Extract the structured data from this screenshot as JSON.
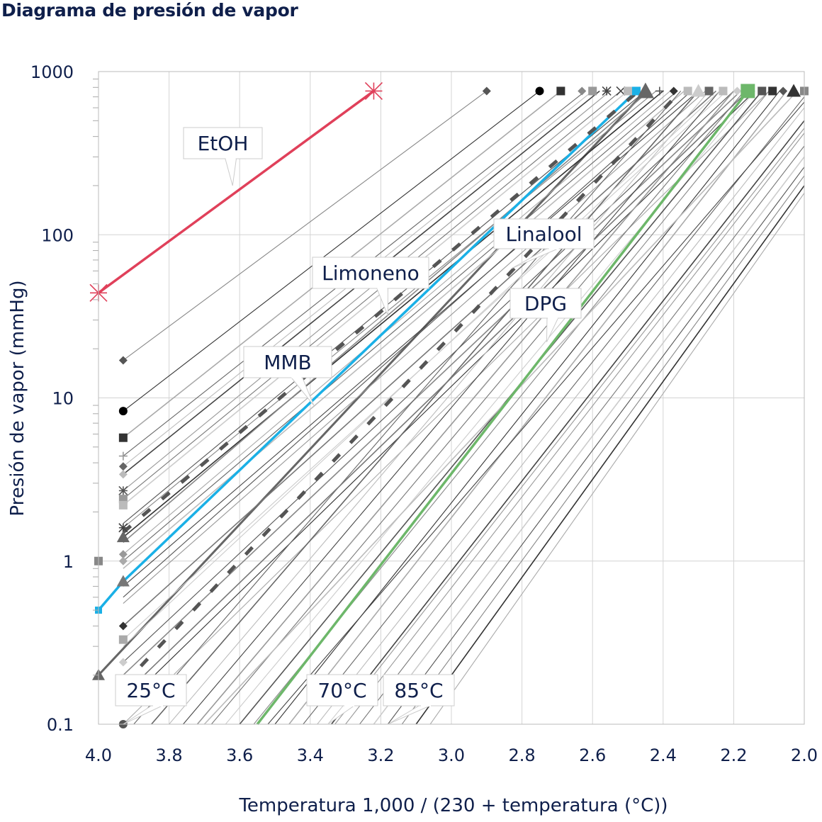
{
  "title": "Diagrama de presión de vapor",
  "chart_data": {
    "type": "line",
    "title": "Diagrama de presión de vapor",
    "xlabel": "Temperatura 1,000 / (230 + temperatura (°C))",
    "ylabel": "Presión de vapor (mmHg)",
    "xlim": [
      4.0,
      2.0
    ],
    "x_reversed": true,
    "ylim": [
      0.1,
      1000
    ],
    "y_scale": "log",
    "grid": true,
    "x_ticks": [
      "4.0",
      "3.8",
      "3.6",
      "3.4",
      "3.2",
      "3.0",
      "2.8",
      "2.6",
      "2.4",
      "2.2",
      "2.0"
    ],
    "y_ticks": [
      "0.1",
      "1",
      "10",
      "100",
      "1000"
    ],
    "highlighted_series": [
      {
        "name": "EtOH",
        "color": "#e0405a",
        "points": [
          [
            4.0,
            44
          ],
          [
            3.22,
            760
          ]
        ],
        "marker": "asterisk"
      },
      {
        "name": "MMB",
        "color": "#1ab0e6",
        "points": [
          [
            4.0,
            0.5
          ],
          [
            3.93,
            0.75
          ],
          [
            2.476,
            760
          ]
        ],
        "marker": "square"
      },
      {
        "name": "Limoneno",
        "color": "#555555",
        "dashed": true,
        "points": [
          [
            3.93,
            1.5
          ],
          [
            2.47,
            760
          ]
        ]
      },
      {
        "name": "Linalool",
        "color": "#555555",
        "dashed": true,
        "points": [
          [
            3.88,
            0.227
          ],
          [
            2.35,
            760
          ]
        ]
      },
      {
        "name": "DPG",
        "color": "#6db76a",
        "points": [
          [
            3.55,
            0.1
          ],
          [
            2.16,
            760
          ]
        ],
        "marker": "square"
      }
    ],
    "other_series": [
      [
        [
          4.0,
          0.2
        ],
        [
          2.45,
          760
        ]
      ],
      [
        [
          3.93,
          17
        ],
        [
          2.9,
          760
        ]
      ],
      [
        [
          3.93,
          8.3
        ],
        [
          2.75,
          760
        ]
      ],
      [
        [
          3.93,
          5.7
        ],
        [
          2.69,
          760
        ]
      ],
      [
        [
          3.93,
          4.4
        ],
        [
          2.62,
          760
        ]
      ],
      [
        [
          3.93,
          3.8
        ],
        [
          2.6,
          760
        ]
      ],
      [
        [
          3.93,
          3.4
        ],
        [
          2.58,
          760
        ]
      ],
      [
        [
          3.93,
          2.7
        ],
        [
          2.55,
          760
        ]
      ],
      [
        [
          3.93,
          2.4
        ],
        [
          2.52,
          760
        ]
      ],
      [
        [
          3.93,
          2.2
        ],
        [
          2.5,
          760
        ]
      ],
      [
        [
          3.93,
          1.7
        ],
        [
          2.45,
          760
        ]
      ],
      [
        [
          3.93,
          1.6
        ],
        [
          2.42,
          760
        ]
      ],
      [
        [
          3.93,
          1.4
        ],
        [
          2.4,
          760
        ]
      ],
      [
        [
          3.93,
          1.1
        ],
        [
          2.38,
          760
        ]
      ],
      [
        [
          3.93,
          1.0
        ],
        [
          2.36,
          760
        ]
      ],
      [
        [
          3.93,
          0.9
        ],
        [
          2.34,
          760
        ]
      ],
      [
        [
          3.93,
          0.7
        ],
        [
          2.3,
          760
        ]
      ],
      [
        [
          3.93,
          0.55
        ],
        [
          2.28,
          760
        ]
      ],
      [
        [
          3.93,
          0.4
        ],
        [
          2.25,
          760
        ]
      ],
      [
        [
          3.93,
          0.33
        ],
        [
          2.22,
          760
        ]
      ],
      [
        [
          3.93,
          0.24
        ],
        [
          2.2,
          760
        ]
      ],
      [
        [
          3.93,
          0.2
        ],
        [
          2.18,
          760
        ]
      ],
      [
        [
          3.93,
          0.13
        ],
        [
          2.14,
          760
        ]
      ],
      [
        [
          3.93,
          0.1
        ],
        [
          2.1,
          760
        ]
      ],
      [
        [
          3.85,
          0.1
        ],
        [
          2.3,
          760
        ]
      ],
      [
        [
          3.8,
          0.1
        ],
        [
          2.27,
          760
        ]
      ],
      [
        [
          3.76,
          0.1
        ],
        [
          2.24,
          760
        ]
      ],
      [
        [
          3.72,
          0.1
        ],
        [
          2.2,
          760
        ]
      ],
      [
        [
          3.68,
          0.1
        ],
        [
          2.17,
          760
        ]
      ],
      [
        [
          3.64,
          0.1
        ],
        [
          2.14,
          760
        ]
      ],
      [
        [
          3.6,
          0.1
        ],
        [
          2.12,
          760
        ]
      ],
      [
        [
          3.56,
          0.1
        ],
        [
          2.1,
          760
        ]
      ],
      [
        [
          3.5,
          0.1
        ],
        [
          2.07,
          760
        ]
      ],
      [
        [
          3.46,
          0.1
        ],
        [
          2.05,
          760
        ]
      ],
      [
        [
          3.42,
          0.1
        ],
        [
          2.0,
          700
        ]
      ],
      [
        [
          3.38,
          0.1
        ],
        [
          2.0,
          600
        ]
      ],
      [
        [
          3.34,
          0.1
        ],
        [
          2.0,
          500
        ]
      ],
      [
        [
          3.3,
          0.1
        ],
        [
          2.0,
          420
        ]
      ],
      [
        [
          3.26,
          0.1
        ],
        [
          2.0,
          350
        ]
      ],
      [
        [
          3.22,
          0.1
        ],
        [
          2.0,
          300
        ]
      ],
      [
        [
          3.18,
          0.1
        ],
        [
          2.0,
          260
        ]
      ],
      [
        [
          3.14,
          0.1
        ],
        [
          2.0,
          230
        ]
      ],
      [
        [
          3.1,
          0.1
        ],
        [
          2.0,
          200
        ]
      ],
      [
        [
          3.06,
          0.1
        ],
        [
          2.0,
          180
        ]
      ],
      [
        [
          3.9,
          0.1
        ],
        [
          2.35,
          760
        ]
      ],
      [
        [
          3.7,
          0.1
        ],
        [
          2.02,
          760
        ]
      ],
      [
        [
          3.52,
          0.1
        ],
        [
          2.0,
          650
        ]
      ],
      [
        [
          3.33,
          0.1
        ],
        [
          2.0,
          450
        ]
      ],
      [
        [
          3.93,
          0.15
        ],
        [
          2.16,
          760
        ]
      ],
      [
        [
          3.93,
          0.3
        ],
        [
          2.24,
          760
        ]
      ],
      [
        [
          3.93,
          0.6
        ],
        [
          2.32,
          760
        ]
      ],
      [
        [
          3.93,
          1.3
        ],
        [
          2.44,
          760
        ]
      ]
    ],
    "start_markers": [
      {
        "x": 3.93,
        "y": 17,
        "shape": "diamond",
        "color": "#555555"
      },
      {
        "x": 3.93,
        "y": 8.3,
        "shape": "circle",
        "color": "#000000"
      },
      {
        "x": 3.93,
        "y": 5.7,
        "shape": "square",
        "color": "#333333"
      },
      {
        "x": 3.93,
        "y": 4.4,
        "shape": "plus",
        "color": "#999999"
      },
      {
        "x": 3.93,
        "y": 3.8,
        "shape": "diamond",
        "color": "#666666"
      },
      {
        "x": 3.93,
        "y": 3.4,
        "shape": "diamond",
        "color": "#bbbbbb"
      },
      {
        "x": 3.93,
        "y": 2.7,
        "shape": "asterisk",
        "color": "#555555"
      },
      {
        "x": 3.93,
        "y": 2.4,
        "shape": "square",
        "color": "#999999"
      },
      {
        "x": 3.93,
        "y": 2.2,
        "shape": "square",
        "color": "#bbbbbb"
      },
      {
        "x": 3.93,
        "y": 1.6,
        "shape": "asterisk",
        "color": "#444444"
      },
      {
        "x": 3.93,
        "y": 1.4,
        "shape": "triangle",
        "color": "#666666"
      },
      {
        "x": 3.93,
        "y": 1.1,
        "shape": "diamond",
        "color": "#999999"
      },
      {
        "x": 3.93,
        "y": 1.0,
        "shape": "diamond",
        "color": "#aaaaaa"
      },
      {
        "x": 4.0,
        "y": 1.0,
        "shape": "square",
        "color": "#888888"
      },
      {
        "x": 3.93,
        "y": 0.75,
        "shape": "triangle",
        "color": "#777777"
      },
      {
        "x": 3.93,
        "y": 0.4,
        "shape": "diamond",
        "color": "#333333"
      },
      {
        "x": 3.93,
        "y": 0.33,
        "shape": "square",
        "color": "#aaaaaa"
      },
      {
        "x": 3.93,
        "y": 0.24,
        "shape": "diamond",
        "color": "#cccccc"
      },
      {
        "x": 4.0,
        "y": 0.2,
        "shape": "triangle",
        "color": "#666666"
      },
      {
        "x": 3.93,
        "y": 0.1,
        "shape": "circle",
        "color": "#555555"
      }
    ],
    "end_markers_y": 760,
    "end_markers": [
      {
        "x": 2.9,
        "shape": "diamond",
        "color": "#555555"
      },
      {
        "x": 2.75,
        "shape": "circle",
        "color": "#000000"
      },
      {
        "x": 2.69,
        "shape": "square",
        "color": "#333333"
      },
      {
        "x": 2.63,
        "shape": "diamond",
        "color": "#888888"
      },
      {
        "x": 2.6,
        "shape": "square",
        "color": "#999999"
      },
      {
        "x": 2.56,
        "shape": "asterisk",
        "color": "#444444"
      },
      {
        "x": 2.52,
        "shape": "x",
        "color": "#444444"
      },
      {
        "x": 2.5,
        "shape": "square",
        "color": "#bbbbbb"
      },
      {
        "x": 2.45,
        "shape": "triangle",
        "color": "#666666"
      },
      {
        "x": 2.41,
        "shape": "plus",
        "color": "#555555"
      },
      {
        "x": 2.37,
        "shape": "diamond",
        "color": "#333333"
      },
      {
        "x": 2.33,
        "shape": "square",
        "color": "#bbbbbb"
      },
      {
        "x": 2.3,
        "shape": "triangle",
        "color": "#cccccc"
      },
      {
        "x": 2.27,
        "shape": "square",
        "color": "#666666"
      },
      {
        "x": 2.23,
        "shape": "square",
        "color": "#bbbbbb"
      },
      {
        "x": 2.19,
        "shape": "diamond",
        "color": "#cccccc"
      },
      {
        "x": 2.12,
        "shape": "square",
        "color": "#555555"
      },
      {
        "x": 2.09,
        "shape": "square",
        "color": "#333333"
      },
      {
        "x": 2.06,
        "shape": "diamond",
        "color": "#555555"
      },
      {
        "x": 2.03,
        "shape": "triangle",
        "color": "#333333"
      },
      {
        "x": 2.0,
        "shape": "square",
        "color": "#888888"
      }
    ],
    "annotations": [
      {
        "text": "EtOH",
        "target": [
          3.62,
          200
        ]
      },
      {
        "text": "Limoneno",
        "target": [
          3.18,
          32
        ]
      },
      {
        "text": "MMB",
        "target": [
          3.39,
          9
        ]
      },
      {
        "text": "Linalool",
        "target": [
          2.83,
          62
        ]
      },
      {
        "text": "DPG",
        "target": [
          2.73,
          22
        ]
      },
      {
        "text": "25°C",
        "target": [
          3.93,
          0.1
        ]
      },
      {
        "text": "70°C",
        "target": [
          3.35,
          0.1
        ]
      },
      {
        "text": "85°C",
        "target": [
          3.18,
          0.1
        ]
      }
    ]
  }
}
